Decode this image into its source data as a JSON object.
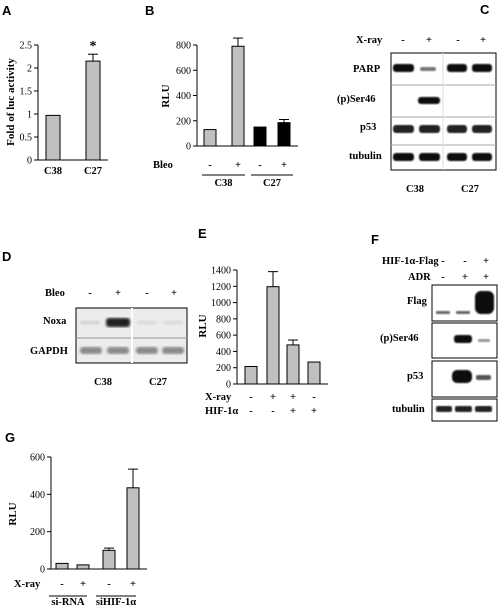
{
  "panels": {
    "A": "A",
    "B": "B",
    "C": "C",
    "D": "D",
    "E": "E",
    "F": "F",
    "G": "G"
  },
  "chart_data": [
    {
      "panel": "A",
      "type": "bar",
      "ylabel": "Fold of luc activity",
      "categories": [
        "C38",
        "C27"
      ],
      "values": [
        0.97,
        2.15
      ],
      "errors": [
        0,
        0.15
      ],
      "ylim": [
        0,
        2.5
      ],
      "yticks": [
        "0",
        "0.5",
        "1",
        "1.5",
        "2",
        "2.5"
      ],
      "annotation": "*",
      "colors": [
        "#c0c0c0",
        "#c0c0c0"
      ]
    },
    {
      "panel": "B",
      "type": "bar",
      "ylabel": "RLU",
      "treatment_label": "Bleo",
      "treatment_states": [
        "-",
        "+",
        "-",
        "+"
      ],
      "groups": [
        "C38",
        "C27"
      ],
      "values": [
        130,
        790,
        150,
        185
      ],
      "errors": [
        0,
        65,
        0,
        25
      ],
      "ylim": [
        0,
        800
      ],
      "yticks": [
        "0",
        "200",
        "400",
        "600",
        "800"
      ],
      "colors": [
        "#c0c0c0",
        "#c0c0c0",
        "#000000",
        "#000000"
      ]
    },
    {
      "panel": "E",
      "type": "bar",
      "ylabel": "RLU",
      "row_labels": [
        "X-ray",
        "HIF-1α"
      ],
      "row_states": [
        [
          "-",
          "+",
          "+",
          "-"
        ],
        [
          "-",
          "-",
          "+",
          "+"
        ]
      ],
      "values": [
        215,
        1195,
        480,
        270
      ],
      "errors": [
        0,
        185,
        60,
        0
      ],
      "ylim": [
        0,
        1400
      ],
      "yticks": [
        "0",
        "200",
        "400",
        "600",
        "800",
        "1000",
        "1200",
        "1400"
      ],
      "colors": [
        "#c0c0c0",
        "#c0c0c0",
        "#c0c0c0",
        "#c0c0c0"
      ]
    },
    {
      "panel": "G",
      "type": "bar",
      "ylabel": "RLU",
      "treatment_label": "X-ray",
      "treatment_states": [
        "-",
        "+",
        "-",
        "+"
      ],
      "groups": [
        "si-RNA",
        "siHIF-1α"
      ],
      "values": [
        30,
        22,
        100,
        435
      ],
      "errors": [
        0,
        0,
        12,
        100
      ],
      "ylim": [
        0,
        600
      ],
      "yticks": [
        "0",
        "200",
        "400",
        "600"
      ],
      "colors": [
        "#c0c0c0",
        "#c0c0c0",
        "#c0c0c0",
        "#c0c0c0"
      ]
    }
  ],
  "blots": {
    "C": {
      "header_label": "X-ray",
      "header_states": [
        "-",
        "+",
        "-",
        "+"
      ],
      "rows": [
        "PARP",
        "(p)Ser46",
        "p53",
        "tubulin"
      ],
      "groups": [
        "C38",
        "C27"
      ]
    },
    "D": {
      "header_label": "Bleo",
      "header_states": [
        "-",
        "+",
        "-",
        "+"
      ],
      "rows": [
        "Noxa",
        "GAPDH"
      ],
      "groups": [
        "C38",
        "C27"
      ]
    },
    "F": {
      "header_rows": [
        {
          "label": "HIF-1α-Flag",
          "states": [
            "-",
            "-",
            "+"
          ]
        },
        {
          "label": "ADR",
          "states": [
            "-",
            "+",
            "+"
          ]
        }
      ],
      "rows": [
        "Flag",
        "(p)Ser46",
        "p53",
        "tubulin"
      ]
    }
  }
}
